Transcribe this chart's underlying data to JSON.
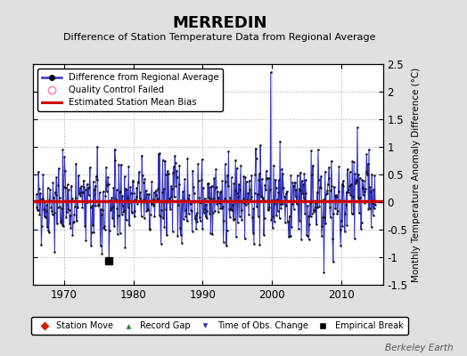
{
  "title": "MERREDIN",
  "subtitle": "Difference of Station Temperature Data from Regional Average",
  "ylabel": "Monthly Temperature Anomaly Difference (°C)",
  "bias": 0.02,
  "ylim": [
    -1.5,
    2.5
  ],
  "xlim": [
    1965.5,
    2016.0
  ],
  "xticks": [
    1970,
    1980,
    1990,
    2000,
    2010
  ],
  "yticks": [
    -1.5,
    -1.0,
    -0.5,
    0.0,
    0.5,
    1.0,
    1.5,
    2.0,
    2.5
  ],
  "yticklabels": [
    "-1.5",
    "-1",
    "-0.5",
    "0",
    "0.5",
    "1",
    "1.5",
    "2",
    "2.5"
  ],
  "background_color": "#e0e0e0",
  "plot_bg_color": "#ffffff",
  "line_color": "#3333bb",
  "bias_color": "#cc0000",
  "marker_color": "#111111",
  "watermark": "Berkeley Earth",
  "empirical_break_x": 1976.5,
  "empirical_break_y": -1.07,
  "seed": 42,
  "n_points": 588,
  "start_year": 1966.0,
  "end_year": 2014.9
}
